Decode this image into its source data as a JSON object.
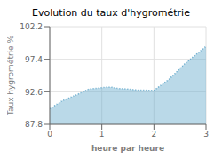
{
  "chart_data": {
    "type": "area",
    "title": "Evolution du taux d'hygrométrie",
    "xlabel": "heure par heure",
    "ylabel": "Taux hygrométrie %",
    "x": [
      0,
      0.25,
      0.5,
      0.75,
      1.0,
      1.1,
      1.2,
      1.3,
      1.5,
      1.7,
      2.0,
      2.3,
      2.6,
      3.0
    ],
    "values": [
      90.1,
      91.3,
      92.1,
      93.0,
      93.2,
      93.3,
      93.25,
      93.1,
      93.0,
      92.85,
      92.8,
      94.5,
      96.8,
      99.3
    ],
    "xlim": [
      0,
      3
    ],
    "ylim": [
      87.8,
      102.2
    ],
    "xticks": [
      0,
      1,
      2,
      3
    ],
    "yticks": [
      87.8,
      92.6,
      97.4,
      102.2
    ],
    "color": "#66aacc",
    "line_style": "dotted",
    "grid": true
  }
}
